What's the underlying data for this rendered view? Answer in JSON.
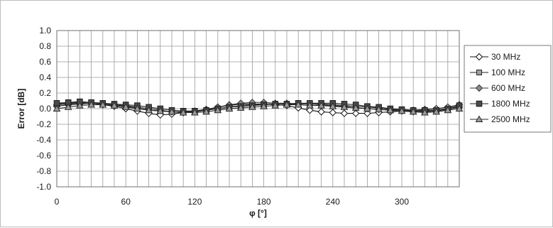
{
  "chart_data": {
    "type": "line",
    "xlabel": "φ [°]",
    "ylabel": "Error [dB]",
    "xlim": [
      0,
      350
    ],
    "ylim": [
      -1.0,
      1.0
    ],
    "grid": true,
    "legend_position": "right",
    "x_ticks": [
      0,
      60,
      120,
      180,
      240,
      300
    ],
    "x_tick_labels": [
      "0",
      "60",
      "120",
      "180",
      "240",
      "300"
    ],
    "y_ticks": [
      1.0,
      0.8,
      0.6,
      0.4,
      0.2,
      0.0,
      -0.2,
      -0.4,
      -0.6,
      -0.8,
      -1.0
    ],
    "y_tick_labels": [
      "1.0",
      "0.8",
      "0.6",
      "0.4",
      "0.2",
      "0.0",
      "-0.2",
      "-0.4",
      "-0.6",
      "-0.8",
      "-1.0"
    ],
    "x": [
      0,
      10,
      20,
      30,
      40,
      50,
      60,
      70,
      80,
      90,
      100,
      110,
      120,
      130,
      140,
      150,
      160,
      170,
      180,
      190,
      200,
      210,
      220,
      230,
      240,
      250,
      260,
      270,
      280,
      290,
      300,
      310,
      320,
      330,
      340,
      350
    ],
    "series": [
      {
        "name": "30 MHz",
        "marker": "diamond-open",
        "color": "#111111",
        "values": [
          0.03,
          0.05,
          0.06,
          0.07,
          0.05,
          0.03,
          0.0,
          -0.03,
          -0.06,
          -0.08,
          -0.07,
          -0.05,
          -0.03,
          -0.01,
          0.02,
          0.04,
          0.06,
          0.06,
          0.06,
          0.05,
          0.04,
          0.01,
          -0.02,
          -0.04,
          -0.05,
          -0.06,
          -0.06,
          -0.06,
          -0.05,
          -0.04,
          -0.03,
          -0.02,
          -0.01,
          0.0,
          0.02,
          0.05
        ]
      },
      {
        "name": "100 MHz",
        "marker": "square-gray",
        "color": "#222222",
        "values": [
          0.06,
          0.07,
          0.08,
          0.08,
          0.06,
          0.05,
          0.03,
          0.01,
          -0.02,
          -0.03,
          -0.04,
          -0.04,
          -0.03,
          -0.02,
          0.0,
          0.02,
          0.04,
          0.05,
          0.06,
          0.06,
          0.06,
          0.06,
          0.06,
          0.06,
          0.05,
          0.04,
          0.03,
          0.02,
          0.01,
          -0.01,
          -0.02,
          -0.03,
          -0.03,
          -0.02,
          0.0,
          0.03
        ]
      },
      {
        "name": "600 MHz",
        "marker": "diamond-gray",
        "color": "#333333",
        "values": [
          0.05,
          0.06,
          0.07,
          0.07,
          0.06,
          0.05,
          0.04,
          0.02,
          0.0,
          -0.02,
          -0.04,
          -0.05,
          -0.04,
          -0.02,
          0.02,
          0.05,
          0.07,
          0.08,
          0.08,
          0.07,
          0.07,
          0.06,
          0.06,
          0.05,
          0.04,
          0.03,
          0.01,
          0.0,
          -0.01,
          -0.02,
          -0.03,
          -0.04,
          -0.04,
          -0.03,
          -0.01,
          0.02
        ]
      },
      {
        "name": "1800 MHz",
        "marker": "square-dark",
        "color": "#1c1c1c",
        "values": [
          0.07,
          0.08,
          0.09,
          0.08,
          0.07,
          0.06,
          0.05,
          0.04,
          0.02,
          0.0,
          -0.02,
          -0.03,
          -0.03,
          -0.02,
          0.0,
          0.02,
          0.03,
          0.04,
          0.05,
          0.06,
          0.06,
          0.07,
          0.07,
          0.07,
          0.07,
          0.06,
          0.05,
          0.03,
          0.02,
          0.0,
          -0.01,
          -0.02,
          -0.02,
          -0.02,
          0.0,
          0.04
        ]
      },
      {
        "name": "2500 MHz",
        "marker": "triangle-gray",
        "color": "#2a2a2a",
        "values": [
          0.0,
          0.02,
          0.04,
          0.05,
          0.05,
          0.04,
          0.02,
          0.0,
          -0.02,
          -0.03,
          -0.04,
          -0.05,
          -0.05,
          -0.04,
          -0.02,
          0.0,
          0.01,
          0.02,
          0.03,
          0.04,
          0.05,
          0.05,
          0.04,
          0.04,
          0.03,
          0.02,
          0.01,
          0.0,
          -0.01,
          -0.02,
          -0.03,
          -0.04,
          -0.05,
          -0.04,
          -0.02,
          0.0
        ]
      }
    ]
  }
}
